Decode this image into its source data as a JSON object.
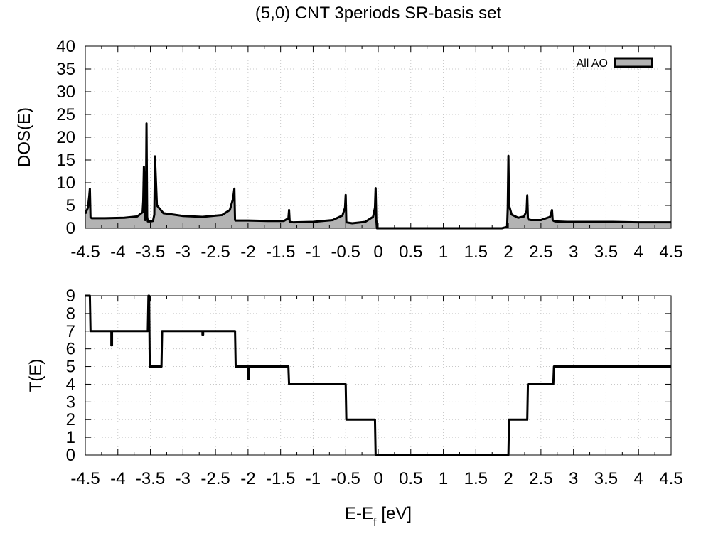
{
  "title": "(5,0) CNT 3periods SR-basis set",
  "chart_data": [
    {
      "type": "area",
      "id": "dos",
      "ylabel": "DOS(E)",
      "xlabel": "",
      "xlim": [
        -4.5,
        4.5
      ],
      "ylim": [
        0,
        40
      ],
      "xticks": [
        "-4.5",
        "-4",
        "-3.5",
        "-3",
        "-2.5",
        "-2",
        "-1.5",
        "-1",
        "-0.5",
        "0",
        "0.5",
        "1",
        "1.5",
        "2",
        "2.5",
        "3",
        "3.5",
        "4",
        "4.5"
      ],
      "yticks": [
        "0",
        "5",
        "10",
        "15",
        "20",
        "25",
        "30",
        "35",
        "40"
      ],
      "grid": true,
      "legend_position": "top-right",
      "series": [
        {
          "name": "All AO",
          "fill": "#b3b3b3",
          "stroke": "#000000",
          "x": [
            -4.5,
            -4.46,
            -4.44,
            -4.43,
            -4.42,
            -4.4,
            -4.2,
            -3.9,
            -3.7,
            -3.62,
            -3.61,
            -3.6,
            -3.59,
            -3.58,
            -3.57,
            -3.56,
            -3.55,
            -3.54,
            -3.5,
            -3.46,
            -3.44,
            -3.43,
            -3.4,
            -3.3,
            -3.0,
            -2.7,
            -2.4,
            -2.28,
            -2.23,
            -2.21,
            -2.2,
            -2.19,
            -2.0,
            -1.7,
            -1.45,
            -1.38,
            -1.37,
            -1.36,
            -1.3,
            -1.0,
            -0.7,
            -0.55,
            -0.51,
            -0.5,
            -0.49,
            -0.4,
            -0.2,
            -0.08,
            -0.05,
            -0.04,
            -0.03,
            -0.02,
            0.0,
            0.5,
            1.0,
            1.5,
            1.9,
            1.98,
            1.99,
            2.0,
            2.01,
            2.05,
            2.15,
            2.24,
            2.28,
            2.29,
            2.3,
            2.31,
            2.35,
            2.5,
            2.64,
            2.67,
            2.68,
            2.69,
            2.7,
            2.72,
            2.9,
            3.2,
            3.6,
            4.0,
            4.5
          ],
          "y": [
            3.2,
            4.5,
            7.0,
            8.7,
            2.4,
            2.2,
            2.2,
            2.3,
            2.6,
            3.5,
            6.0,
            13.5,
            8.0,
            1.8,
            2.0,
            23.0,
            2.5,
            1.5,
            1.5,
            1.6,
            3.0,
            15.8,
            5.0,
            3.3,
            2.7,
            2.5,
            2.9,
            4.0,
            6.5,
            8.7,
            1.8,
            1.7,
            1.7,
            1.6,
            1.6,
            2.2,
            4.0,
            1.4,
            1.3,
            1.4,
            1.8,
            2.8,
            4.5,
            7.3,
            1.3,
            1.1,
            1.4,
            2.5,
            4.5,
            8.8,
            2.0,
            0.0,
            0.0,
            0.0,
            0.0,
            0.0,
            0.0,
            0.3,
            4.5,
            15.9,
            5.0,
            3.0,
            2.3,
            2.6,
            3.8,
            7.2,
            2.2,
            1.9,
            1.8,
            1.8,
            2.5,
            4.0,
            1.8,
            1.7,
            1.6,
            1.5,
            1.4,
            1.4,
            1.4,
            1.3,
            1.3
          ]
        }
      ]
    },
    {
      "type": "line",
      "id": "trans",
      "ylabel": "T(E)",
      "xlabel": "E-E",
      "xlabel_sub": "f",
      "xlabel_unit": " [eV]",
      "xlim": [
        -4.5,
        4.5
      ],
      "ylim": [
        0,
        9
      ],
      "xticks": [
        "-4.5",
        "-4",
        "-3.5",
        "-3",
        "-2.5",
        "-2",
        "-1.5",
        "-1",
        "-0.5",
        "0",
        "0.5",
        "1",
        "1.5",
        "2",
        "2.5",
        "3",
        "3.5",
        "4",
        "4.5"
      ],
      "yticks": [
        "0",
        "1",
        "2",
        "3",
        "4",
        "5",
        "6",
        "7",
        "8",
        "9"
      ],
      "grid": true,
      "series": [
        {
          "stroke": "#000000",
          "x": [
            -4.5,
            -4.43,
            -4.42,
            -4.1,
            -4.1,
            -4.09,
            -4.09,
            -3.54,
            -3.53,
            -3.52,
            -3.51,
            -3.33,
            -3.32,
            -2.7,
            -2.7,
            -2.69,
            -2.69,
            -2.2,
            -2.19,
            -2.0,
            -2.0,
            -1.99,
            -1.99,
            -1.38,
            -1.37,
            -0.5,
            -0.49,
            -0.05,
            -0.04,
            2.0,
            2.01,
            2.29,
            2.3,
            2.69,
            2.7,
            4.5
          ],
          "y": [
            9,
            9,
            7,
            7,
            6.2,
            6.2,
            7,
            7,
            9,
            9,
            5,
            5,
            7,
            7,
            6.8,
            6.8,
            7,
            7,
            5,
            5,
            4.3,
            4.3,
            5,
            5,
            4,
            4,
            2,
            2,
            0,
            0,
            2,
            2,
            4,
            4,
            5,
            5
          ]
        }
      ]
    }
  ]
}
